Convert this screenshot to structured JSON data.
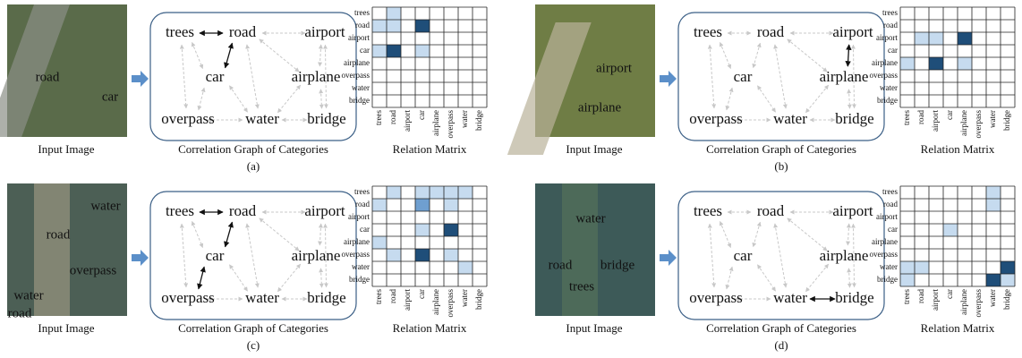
{
  "panels": [
    {
      "label": "(a)",
      "image": {
        "caption": "Input Image",
        "labels": [
          "road",
          "car"
        ]
      },
      "graph": {
        "caption": "Correlation Graph of Categories",
        "nodes": [
          "trees",
          "road",
          "airport",
          "car",
          "airplane",
          "overpass",
          "water",
          "bridge"
        ]
      },
      "matrix": {
        "caption": "Relation Matrix",
        "rows": [
          "trees",
          "road",
          "airport",
          "car",
          "airplane",
          "overpass",
          "water",
          "bridge"
        ],
        "columns": [
          "trees",
          "road",
          "airport",
          "car",
          "airplane",
          "overpass",
          "water",
          "bridge"
        ]
      }
    },
    {
      "label": "(b)",
      "image": {
        "caption": "Input Image",
        "labels": [
          "airport",
          "airplane"
        ]
      },
      "graph": {
        "caption": "Correlation Graph of Categories",
        "nodes": [
          "trees",
          "road",
          "airport",
          "car",
          "airplane",
          "overpass",
          "water",
          "bridge"
        ]
      },
      "matrix": {
        "caption": "Relation Matrix",
        "rows": [
          "trees",
          "road",
          "airport",
          "car",
          "airplane",
          "overpass",
          "water",
          "bridge"
        ],
        "columns": [
          "trees",
          "road",
          "airport",
          "car",
          "airplane",
          "overpass",
          "water",
          "bridge"
        ]
      }
    },
    {
      "label": "(c)",
      "image": {
        "caption": "Input Image",
        "labels": [
          "water",
          "road",
          "water",
          "overpass",
          "road"
        ]
      },
      "graph": {
        "caption": "Correlation Graph of Categories",
        "nodes": [
          "trees",
          "road",
          "airport",
          "car",
          "airplane",
          "overpass",
          "water",
          "bridge"
        ]
      },
      "matrix": {
        "caption": "Relation Matrix",
        "rows": [
          "trees",
          "road",
          "airport",
          "car",
          "airplane",
          "overpass",
          "water",
          "bridge"
        ],
        "columns": [
          "trees",
          "road",
          "airport",
          "car",
          "airplane",
          "overpass",
          "water",
          "bridge"
        ]
      }
    },
    {
      "label": "(d)",
      "image": {
        "caption": "Input Image",
        "labels": [
          "water",
          "road",
          "bridge",
          "trees"
        ]
      },
      "graph": {
        "caption": "Correlation Graph of Categories",
        "nodes": [
          "trees",
          "road",
          "airport",
          "car",
          "airplane",
          "overpass",
          "water",
          "bridge"
        ]
      },
      "matrix": {
        "caption": "Relation Matrix",
        "rows": [
          "trees",
          "road",
          "airport",
          "car",
          "airplane",
          "overpass",
          "water",
          "bridge"
        ],
        "columns": [
          "trees",
          "road",
          "airport",
          "car",
          "airplane",
          "overpass",
          "water",
          "bridge"
        ]
      }
    }
  ]
}
